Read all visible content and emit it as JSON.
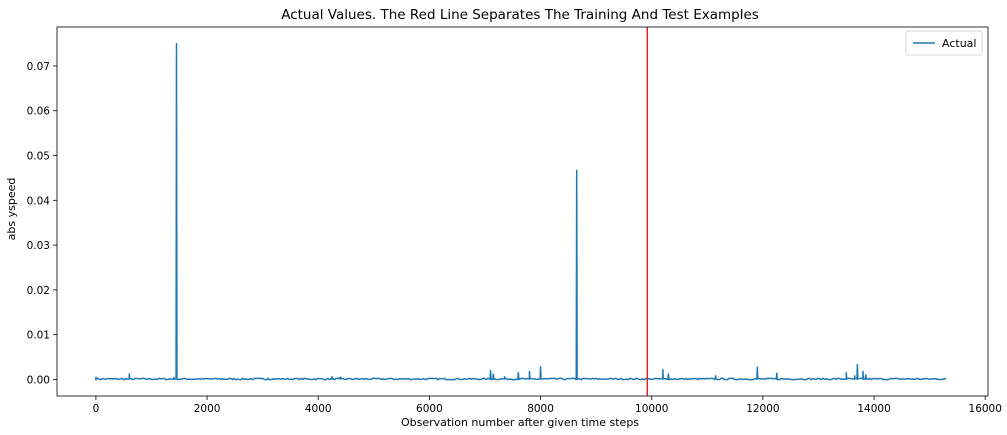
{
  "chart_data": {
    "type": "line",
    "title": "Actual Values. The Red Line Separates The Training And Test Examples",
    "xlabel": "Observation number after given time steps",
    "ylabel": "abs yspeed",
    "xlim": [
      -700,
      16050
    ],
    "ylim": [
      -0.0037,
      0.0787
    ],
    "xticks": [
      0,
      2000,
      4000,
      6000,
      8000,
      10000,
      12000,
      14000,
      16000
    ],
    "xtick_labels": [
      "0",
      "2000",
      "4000",
      "6000",
      "8000",
      "10000",
      "12000",
      "14000",
      "16000"
    ],
    "yticks": [
      0.0,
      0.01,
      0.02,
      0.03,
      0.04,
      0.05,
      0.06,
      0.07
    ],
    "ytick_labels": [
      "0.00",
      "0.01",
      "0.02",
      "0.03",
      "0.04",
      "0.05",
      "0.06",
      "0.07"
    ],
    "legend_position": "upper-right",
    "grid": false,
    "series": [
      {
        "name": "Actual",
        "color": "#1f77b4",
        "baseline": 0.0001,
        "x_end": 15300,
        "spikes": [
          [
            0,
            0.0005
          ],
          [
            600,
            0.0012
          ],
          [
            1400,
            0.0004
          ],
          [
            1450,
            0.075
          ],
          [
            3100,
            0.0003
          ],
          [
            4250,
            0.0006
          ],
          [
            4400,
            0.0005
          ],
          [
            7100,
            0.002
          ],
          [
            7150,
            0.0012
          ],
          [
            7350,
            0.0006
          ],
          [
            7600,
            0.0015
          ],
          [
            7800,
            0.0018
          ],
          [
            8000,
            0.0028
          ],
          [
            8650,
            0.0467
          ],
          [
            10200,
            0.0022
          ],
          [
            10300,
            0.0012
          ],
          [
            11150,
            0.0008
          ],
          [
            11900,
            0.0027
          ],
          [
            12250,
            0.0014
          ],
          [
            13500,
            0.0015
          ],
          [
            13650,
            0.0008
          ],
          [
            13700,
            0.0033
          ],
          [
            13800,
            0.0018
          ],
          [
            13850,
            0.001
          ]
        ]
      }
    ],
    "vline": {
      "x": 9920,
      "color": "#d62728"
    }
  }
}
